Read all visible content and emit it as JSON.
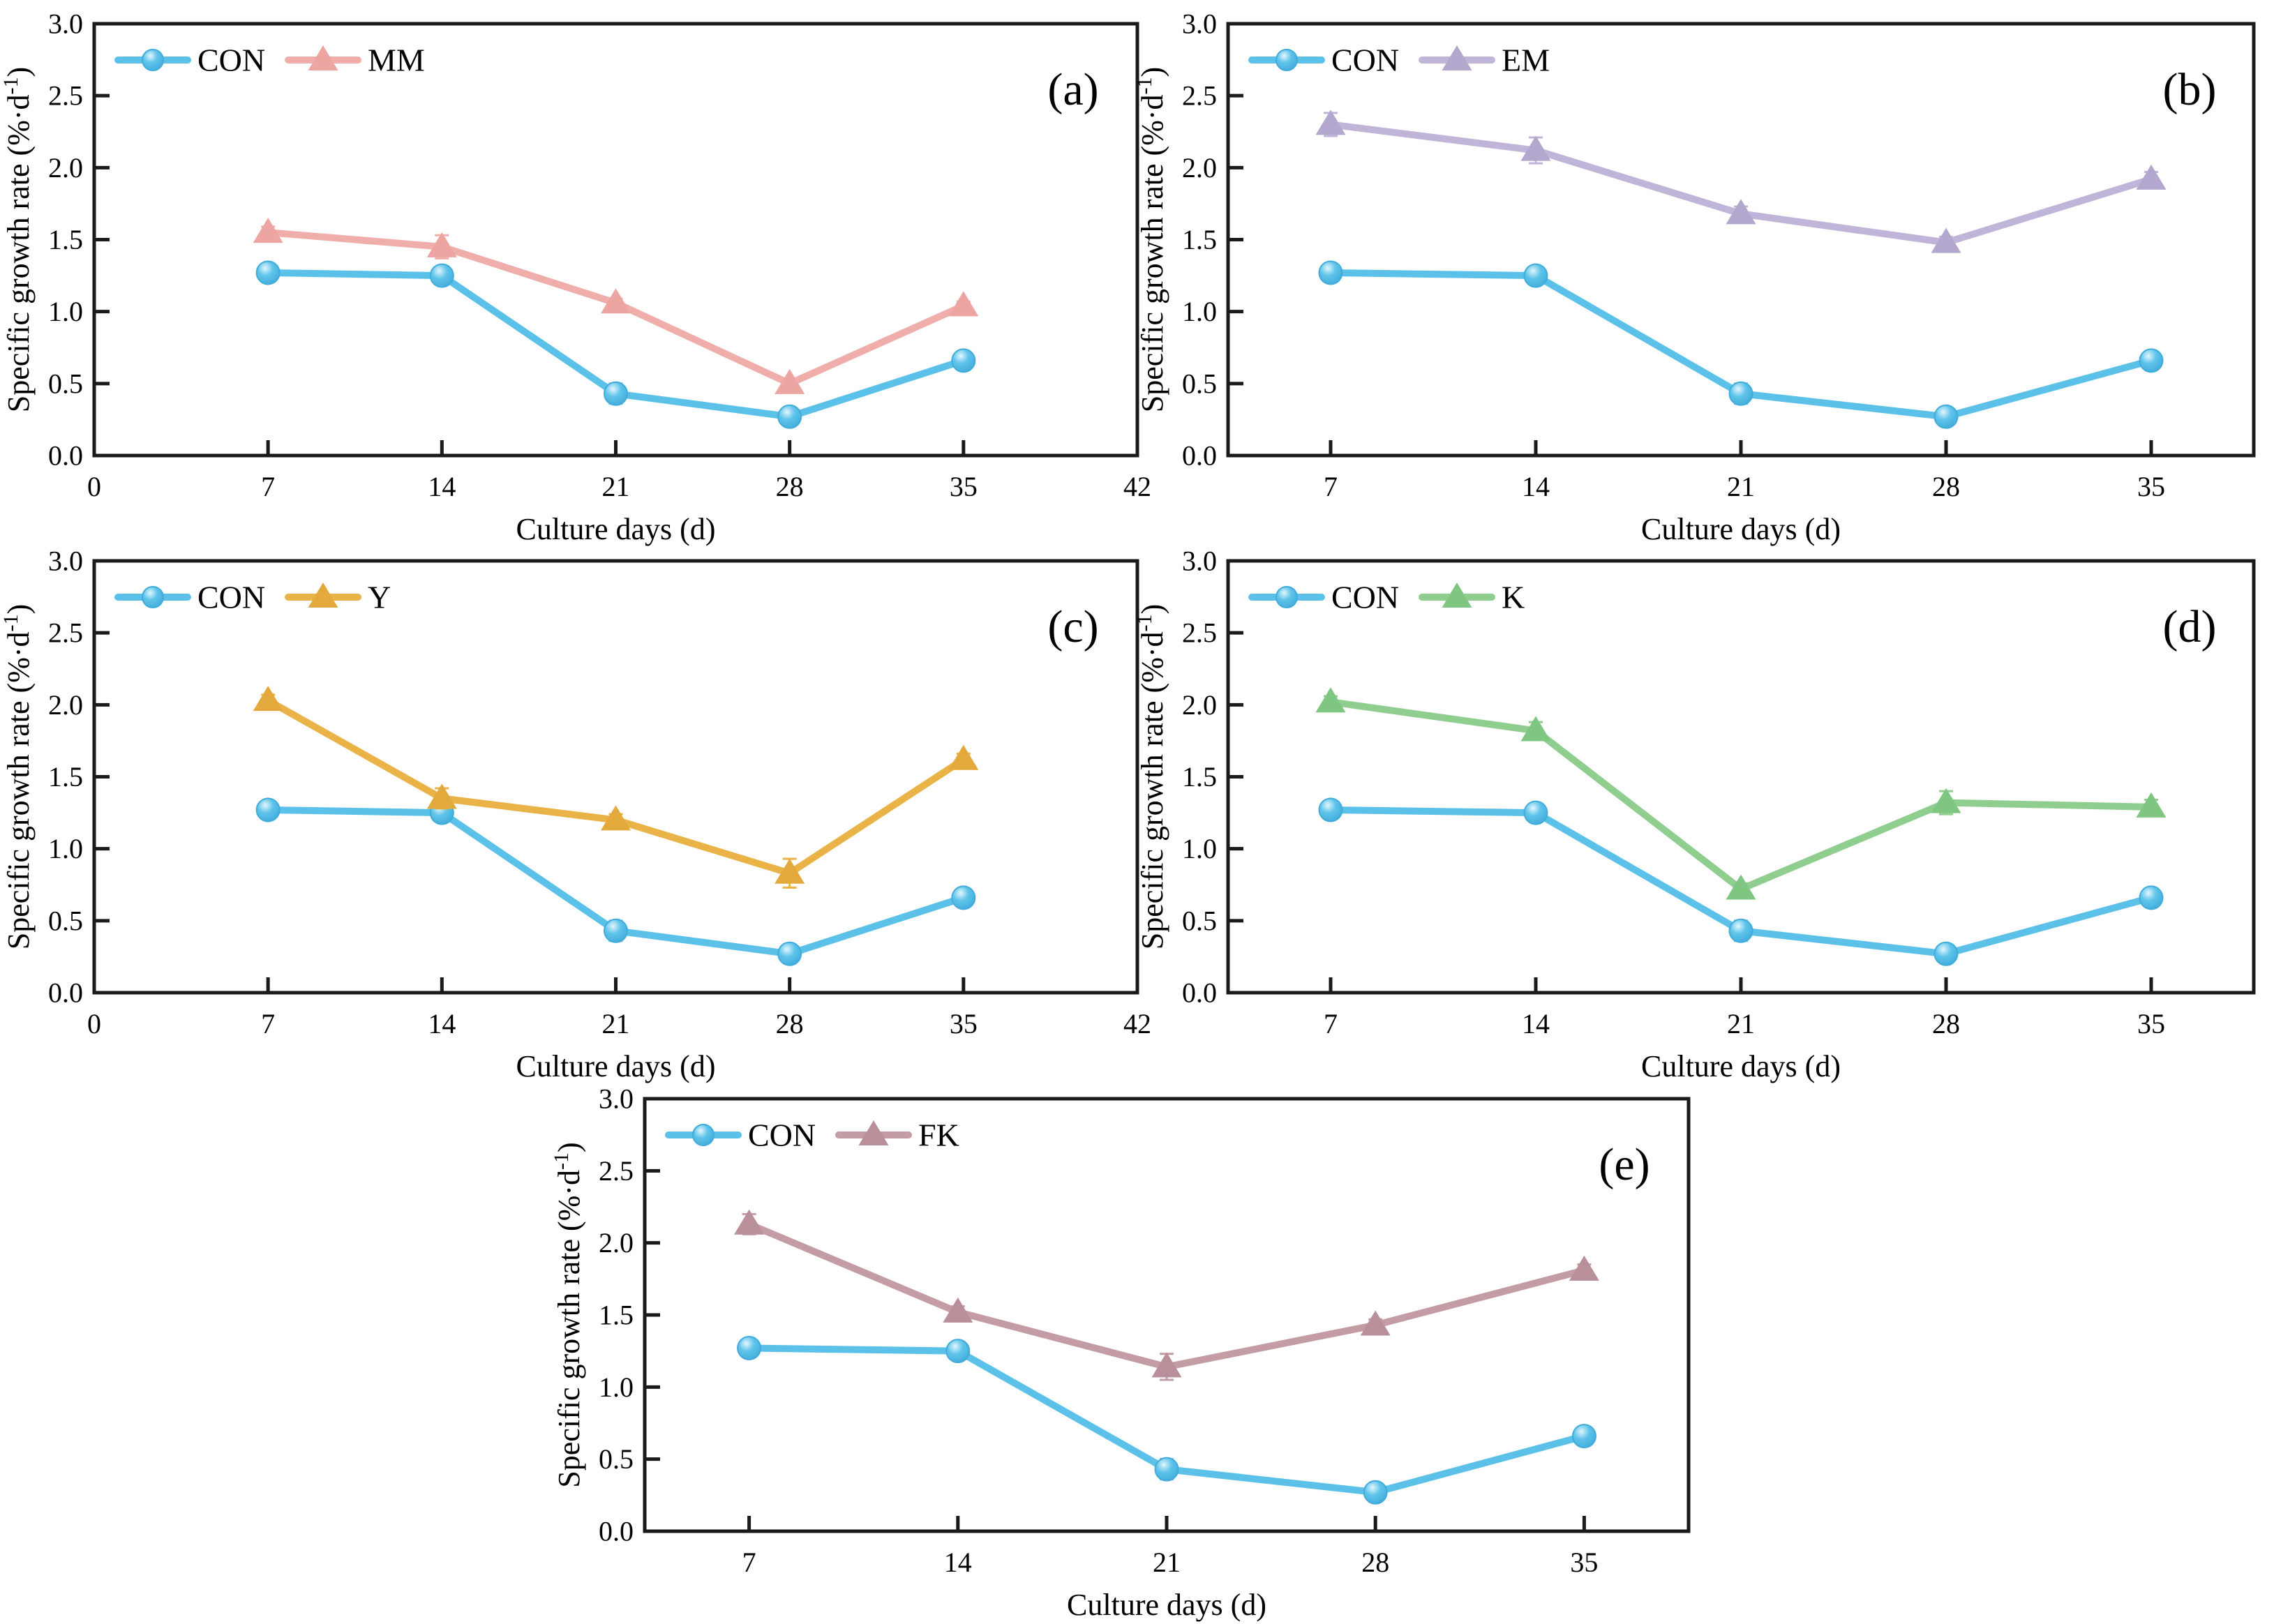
{
  "figure": {
    "background": "#ffffff",
    "axis_color": "#1a1a1a",
    "text_color": "#000000",
    "x_axis_label": "Culture days (d)",
    "y_axis_label": "Specific growth rate (%·d⁻¹)"
  },
  "chart_data": [
    {
      "type": "line",
      "panel_key": "a",
      "panel_label": "(a)",
      "xlabel": "Culture days (d)",
      "ylabel": "Specific growth rate (%·d⁻¹)",
      "ylim": [
        0.0,
        3.0
      ],
      "y_ticks": [
        0.0,
        0.5,
        1.0,
        1.5,
        2.0,
        2.5,
        3.0
      ],
      "xlim": [
        0,
        42
      ],
      "x_ticks": [
        0,
        7,
        14,
        21,
        28,
        35,
        42
      ],
      "grid": false,
      "legend_position": "top-left",
      "x": [
        7,
        14,
        21,
        28,
        35
      ],
      "series": [
        {
          "name": "CON",
          "marker": "sphere",
          "color": "#5BC1E8",
          "marker_fill": "#5FC4EA",
          "edge": "#41ACDB",
          "values": [
            1.27,
            1.25,
            0.43,
            0.27,
            0.66
          ],
          "errors": [
            0.03,
            0.03,
            0.07,
            0.03,
            0.03
          ]
        },
        {
          "name": "MM",
          "marker": "triangle",
          "color": "#F0AEAB",
          "marker_fill": "#EDA5A2",
          "edge": "#E79B98",
          "values": [
            1.55,
            1.45,
            1.06,
            0.5,
            1.04
          ],
          "errors": [
            0.04,
            0.08,
            0.03,
            0.03,
            0.03
          ]
        }
      ]
    },
    {
      "type": "line",
      "panel_key": "b",
      "panel_label": "(b)",
      "xlabel": "Culture days (d)",
      "ylabel": "Specific growth rate (%·d⁻¹)",
      "ylim": [
        0.0,
        3.0
      ],
      "y_ticks": [
        0.0,
        0.5,
        1.0,
        1.5,
        2.0,
        2.5,
        3.0
      ],
      "xlim": [
        3.5,
        38.5
      ],
      "x_ticks": [
        7,
        14,
        21,
        28,
        35
      ],
      "grid": false,
      "legend_position": "top-left",
      "x": [
        7,
        14,
        21,
        28,
        35
      ],
      "series": [
        {
          "name": "CON",
          "marker": "sphere",
          "color": "#5BC1E8",
          "marker_fill": "#5FC4EA",
          "edge": "#41ACDB",
          "values": [
            1.27,
            1.25,
            0.43,
            0.27,
            0.66
          ],
          "errors": [
            0.03,
            0.03,
            0.07,
            0.03,
            0.03
          ]
        },
        {
          "name": "EM",
          "marker": "triangle",
          "color": "#C0B5D8",
          "marker_fill": "#B3A7CE",
          "edge": "#A89BC7",
          "values": [
            2.3,
            2.12,
            1.68,
            1.48,
            1.92
          ],
          "errors": [
            0.08,
            0.09,
            0.05,
            0.04,
            0.05
          ]
        }
      ]
    },
    {
      "type": "line",
      "panel_key": "c",
      "panel_label": "(c)",
      "xlabel": "Culture days (d)",
      "ylabel": "Specific growth rate (%·d⁻¹)",
      "ylim": [
        0.0,
        3.0
      ],
      "y_ticks": [
        0.0,
        0.5,
        1.0,
        1.5,
        2.0,
        2.5,
        3.0
      ],
      "xlim": [
        0,
        42
      ],
      "x_ticks": [
        0,
        7,
        14,
        21,
        28,
        35,
        42
      ],
      "grid": false,
      "legend_position": "top-left",
      "x": [
        7,
        14,
        21,
        28,
        35
      ],
      "series": [
        {
          "name": "CON",
          "marker": "sphere",
          "color": "#5BC1E8",
          "marker_fill": "#5FC4EA",
          "edge": "#41ACDB",
          "values": [
            1.27,
            1.25,
            0.43,
            0.27,
            0.66
          ],
          "errors": [
            0.03,
            0.03,
            0.07,
            0.03,
            0.03
          ]
        },
        {
          "name": "Y",
          "marker": "triangle",
          "color": "#E9B348",
          "marker_fill": "#E3A93C",
          "edge": "#DDA231",
          "values": [
            2.03,
            1.35,
            1.2,
            0.83,
            1.62
          ],
          "errors": [
            0.04,
            0.07,
            0.04,
            0.1,
            0.04
          ]
        }
      ]
    },
    {
      "type": "line",
      "panel_key": "d",
      "panel_label": "(d)",
      "xlabel": "Culture days (d)",
      "ylabel": "Specific growth rate (%·d⁻¹)",
      "ylim": [
        0.0,
        3.0
      ],
      "y_ticks": [
        0.0,
        0.5,
        1.0,
        1.5,
        2.0,
        2.5,
        3.0
      ],
      "xlim": [
        3.5,
        38.5
      ],
      "x_ticks": [
        7,
        14,
        21,
        28,
        35
      ],
      "grid": false,
      "legend_position": "top-left",
      "x": [
        7,
        14,
        21,
        28,
        35
      ],
      "series": [
        {
          "name": "CON",
          "marker": "sphere",
          "color": "#5BC1E8",
          "marker_fill": "#5FC4EA",
          "edge": "#41ACDB",
          "values": [
            1.27,
            1.25,
            0.43,
            0.27,
            0.66
          ],
          "errors": [
            0.03,
            0.03,
            0.07,
            0.03,
            0.03
          ]
        },
        {
          "name": "K",
          "marker": "triangle",
          "color": "#90CE90",
          "marker_fill": "#7FC682",
          "edge": "#73BE76",
          "values": [
            2.02,
            1.82,
            0.72,
            1.32,
            1.29
          ],
          "errors": [
            0.04,
            0.06,
            0.04,
            0.08,
            0.05
          ]
        }
      ]
    },
    {
      "type": "line",
      "panel_key": "e",
      "panel_label": "(e)",
      "xlabel": "Culture days (d)",
      "ylabel": "Specific growth rate (%·d⁻¹)",
      "ylim": [
        0.0,
        3.0
      ],
      "y_ticks": [
        0.0,
        0.5,
        1.0,
        1.5,
        2.0,
        2.5,
        3.0
      ],
      "xlim": [
        3.5,
        38.5
      ],
      "x_ticks": [
        7,
        14,
        21,
        28,
        35
      ],
      "grid": false,
      "legend_position": "top-left",
      "x": [
        7,
        14,
        21,
        28,
        35
      ],
      "series": [
        {
          "name": "CON",
          "marker": "sphere",
          "color": "#5BC1E8",
          "marker_fill": "#5FC4EA",
          "edge": "#41ACDB",
          "values": [
            1.27,
            1.25,
            0.43,
            0.27,
            0.66
          ],
          "errors": [
            0.03,
            0.03,
            0.07,
            0.03,
            0.03
          ]
        },
        {
          "name": "FK",
          "marker": "triangle",
          "color": "#C49CA4",
          "marker_fill": "#B98F99",
          "edge": "#AF8690",
          "values": [
            2.13,
            1.52,
            1.14,
            1.43,
            1.81
          ],
          "errors": [
            0.07,
            0.04,
            0.09,
            0.04,
            0.04
          ]
        }
      ]
    }
  ]
}
